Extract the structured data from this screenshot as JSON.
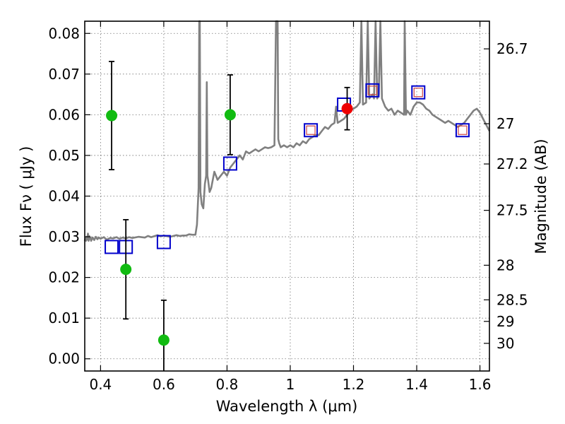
{
  "chart_data": {
    "type": "scatter",
    "xlabel": "Wavelength  λ (μm)",
    "ylabel": "Flux  Fν  ( μJy )",
    "y2label": "Magnitude (AB)",
    "xlim": [
      0.35,
      1.63
    ],
    "ylim": [
      -0.003,
      0.083
    ],
    "x_ticks": [
      {
        "value": 0.4,
        "label": "0.4"
      },
      {
        "value": 0.6,
        "label": "0.6"
      },
      {
        "value": 0.8,
        "label": "0.8"
      },
      {
        "value": 1.0,
        "label": "1"
      },
      {
        "value": 1.2,
        "label": "1.2"
      },
      {
        "value": 1.4,
        "label": "1.4"
      },
      {
        "value": 1.6,
        "label": "1.6"
      }
    ],
    "y_ticks": [
      {
        "value": 0.0,
        "label": "0.00"
      },
      {
        "value": 0.01,
        "label": "0.01"
      },
      {
        "value": 0.02,
        "label": "0.02"
      },
      {
        "value": 0.03,
        "label": "0.03"
      },
      {
        "value": 0.04,
        "label": "0.04"
      },
      {
        "value": 0.05,
        "label": "0.05"
      },
      {
        "value": 0.06,
        "label": "0.06"
      },
      {
        "value": 0.07,
        "label": "0.07"
      },
      {
        "value": 0.08,
        "label": "0.08"
      }
    ],
    "y2_ticks": [
      {
        "flux": 0.0762,
        "label": "26.7"
      },
      {
        "flux": 0.0578,
        "label": "27"
      },
      {
        "flux": 0.0479,
        "label": "27.2"
      },
      {
        "flux": 0.0365,
        "label": "27.5"
      },
      {
        "flux": 0.023,
        "label": "28"
      },
      {
        "flux": 0.0145,
        "label": "28.5"
      },
      {
        "flux": 0.0092,
        "label": "29"
      },
      {
        "flux": 0.0038,
        "label": "30"
      }
    ],
    "grid": true,
    "series": [
      {
        "name": "model spectrum",
        "kind": "line",
        "color": "#808080",
        "points": [
          [
            0.35,
            0.029
          ],
          [
            0.352,
            0.0296
          ],
          [
            0.354,
            0.029
          ],
          [
            0.356,
            0.03
          ],
          [
            0.358,
            0.0293
          ],
          [
            0.36,
            0.0308
          ],
          [
            0.362,
            0.029
          ],
          [
            0.364,
            0.0302
          ],
          [
            0.366,
            0.0295
          ],
          [
            0.368,
            0.0298
          ],
          [
            0.37,
            0.029
          ],
          [
            0.375,
            0.0298
          ],
          [
            0.38,
            0.0292
          ],
          [
            0.385,
            0.03
          ],
          [
            0.39,
            0.0294
          ],
          [
            0.395,
            0.0298
          ],
          [
            0.4,
            0.0295
          ],
          [
            0.41,
            0.0299
          ],
          [
            0.42,
            0.0293
          ],
          [
            0.43,
            0.0297
          ],
          [
            0.44,
            0.0296
          ],
          [
            0.45,
            0.0299
          ],
          [
            0.46,
            0.0295
          ],
          [
            0.47,
            0.0298
          ],
          [
            0.48,
            0.0296
          ],
          [
            0.49,
            0.0299
          ],
          [
            0.5,
            0.0297
          ],
          [
            0.52,
            0.03
          ],
          [
            0.54,
            0.0298
          ],
          [
            0.55,
            0.0302
          ],
          [
            0.56,
            0.0299
          ],
          [
            0.58,
            0.0304
          ],
          [
            0.59,
            0.0301
          ],
          [
            0.6,
            0.0303
          ],
          [
            0.62,
            0.03
          ],
          [
            0.64,
            0.0304
          ],
          [
            0.65,
            0.0302
          ],
          [
            0.66,
            0.0303
          ],
          [
            0.67,
            0.0303
          ],
          [
            0.68,
            0.0306
          ],
          [
            0.69,
            0.0305
          ],
          [
            0.7,
            0.0305
          ],
          [
            0.705,
            0.033
          ],
          [
            0.71,
            0.042
          ],
          [
            0.712,
            0.09
          ],
          [
            0.714,
            0.09
          ],
          [
            0.716,
            0.041
          ],
          [
            0.72,
            0.038
          ],
          [
            0.725,
            0.037
          ],
          [
            0.73,
            0.043
          ],
          [
            0.734,
            0.045
          ],
          [
            0.736,
            0.068
          ],
          [
            0.738,
            0.045
          ],
          [
            0.74,
            0.044
          ],
          [
            0.745,
            0.041
          ],
          [
            0.75,
            0.042
          ],
          [
            0.76,
            0.046
          ],
          [
            0.765,
            0.045
          ],
          [
            0.77,
            0.044
          ],
          [
            0.78,
            0.045
          ],
          [
            0.79,
            0.046
          ],
          [
            0.8,
            0.045
          ],
          [
            0.81,
            0.047
          ],
          [
            0.82,
            0.048
          ],
          [
            0.83,
            0.049
          ],
          [
            0.84,
            0.05
          ],
          [
            0.85,
            0.049
          ],
          [
            0.86,
            0.051
          ],
          [
            0.87,
            0.0505
          ],
          [
            0.88,
            0.051
          ],
          [
            0.89,
            0.0515
          ],
          [
            0.9,
            0.051
          ],
          [
            0.91,
            0.0515
          ],
          [
            0.92,
            0.052
          ],
          [
            0.93,
            0.0518
          ],
          [
            0.94,
            0.052
          ],
          [
            0.95,
            0.0525
          ],
          [
            0.955,
            0.09
          ],
          [
            0.96,
            0.09
          ],
          [
            0.962,
            0.054
          ],
          [
            0.965,
            0.053
          ],
          [
            0.97,
            0.052
          ],
          [
            0.98,
            0.0525
          ],
          [
            0.99,
            0.052
          ],
          [
            1.0,
            0.0525
          ],
          [
            1.01,
            0.052
          ],
          [
            1.02,
            0.053
          ],
          [
            1.03,
            0.0525
          ],
          [
            1.04,
            0.0535
          ],
          [
            1.05,
            0.053
          ],
          [
            1.06,
            0.054
          ],
          [
            1.07,
            0.0545
          ],
          [
            1.08,
            0.055
          ],
          [
            1.09,
            0.055
          ],
          [
            1.1,
            0.056
          ],
          [
            1.11,
            0.057
          ],
          [
            1.12,
            0.0565
          ],
          [
            1.13,
            0.0575
          ],
          [
            1.14,
            0.058
          ],
          [
            1.145,
            0.062
          ],
          [
            1.15,
            0.058
          ],
          [
            1.16,
            0.0585
          ],
          [
            1.17,
            0.059
          ],
          [
            1.18,
            0.06
          ],
          [
            1.19,
            0.061
          ],
          [
            1.2,
            0.0615
          ],
          [
            1.21,
            0.062
          ],
          [
            1.22,
            0.063
          ],
          [
            1.225,
            0.09
          ],
          [
            1.23,
            0.0625
          ],
          [
            1.24,
            0.063
          ],
          [
            1.245,
            0.09
          ],
          [
            1.25,
            0.064
          ],
          [
            1.26,
            0.065
          ],
          [
            1.265,
            0.064
          ],
          [
            1.27,
            0.09
          ],
          [
            1.275,
            0.064
          ],
          [
            1.28,
            0.065
          ],
          [
            1.285,
            0.09
          ],
          [
            1.29,
            0.064
          ],
          [
            1.3,
            0.062
          ],
          [
            1.31,
            0.061
          ],
          [
            1.32,
            0.0615
          ],
          [
            1.33,
            0.06
          ],
          [
            1.34,
            0.061
          ],
          [
            1.35,
            0.0605
          ],
          [
            1.36,
            0.06
          ],
          [
            1.362,
            0.09
          ],
          [
            1.366,
            0.06
          ],
          [
            1.37,
            0.061
          ],
          [
            1.38,
            0.06
          ],
          [
            1.39,
            0.062
          ],
          [
            1.4,
            0.063
          ],
          [
            1.41,
            0.063
          ],
          [
            1.42,
            0.0625
          ],
          [
            1.43,
            0.0615
          ],
          [
            1.44,
            0.061
          ],
          [
            1.45,
            0.06
          ],
          [
            1.46,
            0.0595
          ],
          [
            1.47,
            0.059
          ],
          [
            1.48,
            0.0585
          ],
          [
            1.49,
            0.058
          ],
          [
            1.5,
            0.0585
          ],
          [
            1.51,
            0.058
          ],
          [
            1.52,
            0.0575
          ],
          [
            1.53,
            0.057
          ],
          [
            1.54,
            0.0575
          ],
          [
            1.55,
            0.058
          ],
          [
            1.56,
            0.059
          ],
          [
            1.57,
            0.06
          ],
          [
            1.58,
            0.061
          ],
          [
            1.59,
            0.0615
          ],
          [
            1.6,
            0.0605
          ],
          [
            1.61,
            0.059
          ],
          [
            1.62,
            0.0575
          ],
          [
            1.63,
            0.056
          ]
        ]
      },
      {
        "name": "model photometry",
        "kind": "open-square",
        "color": "#0000cc",
        "points": [
          [
            0.435,
            0.0275
          ],
          [
            0.48,
            0.0275
          ],
          [
            0.6,
            0.0287
          ],
          [
            0.81,
            0.048
          ],
          [
            1.065,
            0.0562
          ],
          [
            1.17,
            0.0625
          ],
          [
            1.26,
            0.066
          ],
          [
            1.405,
            0.0655
          ],
          [
            1.545,
            0.0562
          ]
        ]
      },
      {
        "name": "model photometry inner",
        "kind": "small-square",
        "color": "#cc4444",
        "points": [
          [
            1.065,
            0.0562
          ],
          [
            1.26,
            0.066
          ],
          [
            1.405,
            0.0655
          ],
          [
            1.545,
            0.0562
          ]
        ]
      },
      {
        "name": "observed flux",
        "kind": "filled-circle",
        "color": "#11bb11",
        "points": [
          [
            0.435,
            0.0598,
            0.0133
          ],
          [
            0.48,
            0.022,
            0.0122
          ],
          [
            0.6,
            0.0046,
            0.0098
          ],
          [
            0.81,
            0.06,
            0.0098
          ]
        ]
      },
      {
        "name": "observed flux highlighted",
        "kind": "filled-circle",
        "color": "#ee0000",
        "points": [
          [
            1.18,
            0.0615,
            0.0052
          ]
        ]
      }
    ]
  }
}
